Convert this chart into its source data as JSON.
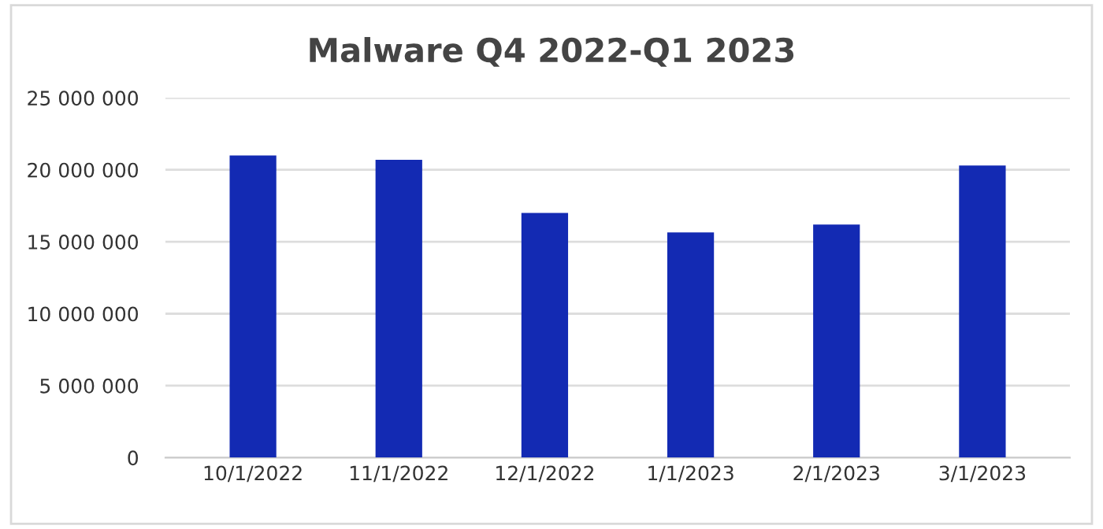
{
  "chart_data": {
    "type": "bar",
    "title": "Malware Q4 2022-Q1 2023",
    "categories": [
      "10/1/2022",
      "11/1/2022",
      "12/1/2022",
      "1/1/2023",
      "2/1/2023",
      "3/1/2023"
    ],
    "values": [
      21000000,
      20700000,
      17000000,
      15650000,
      16200000,
      20300000
    ],
    "color": "#132ab3",
    "ylim": [
      0,
      25000000
    ],
    "yticks": [
      {
        "value": 0,
        "label": "0"
      },
      {
        "value": 5000000,
        "label": "5 000 000"
      },
      {
        "value": 10000000,
        "label": "10 000 000"
      },
      {
        "value": 15000000,
        "label": "15 000 000"
      },
      {
        "value": 20000000,
        "label": "20 000 000"
      },
      {
        "value": 25000000,
        "label": "25 000 000"
      }
    ],
    "grid": "y"
  }
}
